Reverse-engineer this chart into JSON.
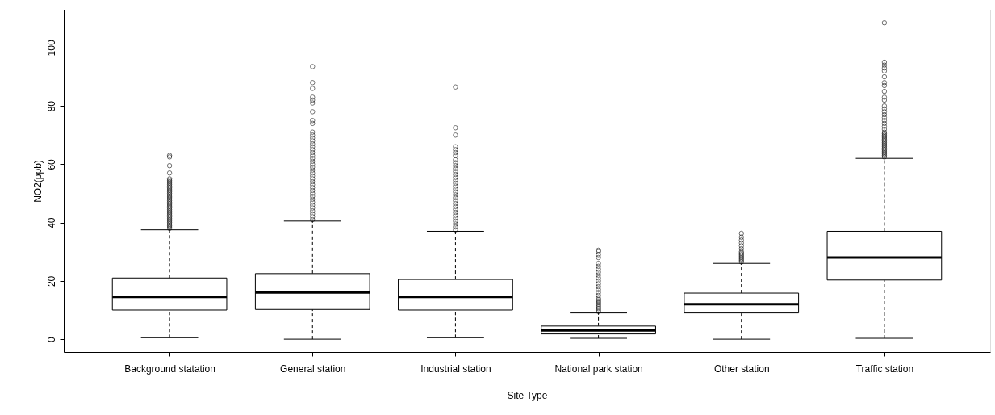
{
  "chart_data": {
    "type": "box",
    "xlabel": "Site Type",
    "ylabel": "NO2(ppb)",
    "categories": [
      "Background statation",
      "General station",
      "Industrial station",
      "National park station",
      "Other station",
      "Traffic station"
    ],
    "ylim": [
      -4.4,
      113
    ],
    "yticks": [
      0,
      20,
      40,
      60,
      80,
      100
    ],
    "grid": false,
    "marker": "circle",
    "boxes": [
      {
        "low": 0.5,
        "q1": 10,
        "median": 14.5,
        "q3": 21,
        "high": 37.5,
        "outliers": [
          38,
          38.5,
          39,
          39.5,
          40,
          40.5,
          41,
          41.5,
          42,
          42.5,
          43,
          43.5,
          44,
          44.5,
          45,
          45.5,
          46,
          46.5,
          47,
          47.5,
          48,
          48.5,
          49,
          49.5,
          50,
          50.5,
          51,
          51.5,
          52,
          52.5,
          53,
          53.5,
          54,
          54.5,
          55,
          57,
          59.5,
          62.5,
          63
        ]
      },
      {
        "low": 0,
        "q1": 10.2,
        "median": 16,
        "q3": 22.5,
        "high": 40.5,
        "outliers": [
          41,
          42,
          43,
          44,
          45,
          46,
          47,
          48,
          49,
          50,
          51,
          52,
          53,
          54,
          55,
          56,
          57,
          58,
          59,
          60,
          61,
          62,
          63,
          64,
          65,
          66,
          67,
          68,
          69,
          70,
          71,
          74,
          75,
          78,
          81,
          82,
          83,
          86,
          88,
          93.5
        ]
      },
      {
        "low": 0.5,
        "q1": 10,
        "median": 14.5,
        "q3": 20.5,
        "high": 37,
        "outliers": [
          37.5,
          38.5,
          39.5,
          40.5,
          41.5,
          42.5,
          43.5,
          44.5,
          45.5,
          46.5,
          47.5,
          48.5,
          49.5,
          50.5,
          51.5,
          52.5,
          53.5,
          54.5,
          55.5,
          56.5,
          57.5,
          58.5,
          59.5,
          60.5,
          61.5,
          63,
          64,
          65,
          66,
          70,
          72.5,
          86.5
        ]
      },
      {
        "low": 0.3,
        "q1": 1.8,
        "median": 3,
        "q3": 4.5,
        "high": 9,
        "outliers": [
          9.5,
          10,
          10.5,
          11,
          11.5,
          12,
          12.5,
          13,
          13.5,
          14,
          15,
          16,
          17,
          18,
          19,
          20,
          21,
          22,
          23,
          24,
          25,
          26,
          28,
          29,
          30,
          30.5
        ]
      },
      {
        "low": 0,
        "q1": 9,
        "median": 12,
        "q3": 15.8,
        "high": 26,
        "outliers": [
          26.5,
          27,
          27.5,
          28,
          28.5,
          29,
          29.5,
          30,
          31,
          32,
          33,
          34,
          35,
          36.3
        ]
      },
      {
        "low": 0.3,
        "q1": 20.3,
        "median": 28,
        "q3": 37,
        "high": 62,
        "outliers": [
          62.5,
          63,
          63.5,
          64,
          64.5,
          65,
          65.5,
          66,
          66.5,
          67,
          67.5,
          68,
          68.5,
          69,
          69.5,
          70,
          70.5,
          71,
          72,
          73,
          74,
          75,
          76,
          77,
          78,
          79,
          80,
          82,
          83,
          85,
          87,
          88,
          90,
          92,
          93,
          94,
          95,
          108.5
        ]
      }
    ]
  }
}
